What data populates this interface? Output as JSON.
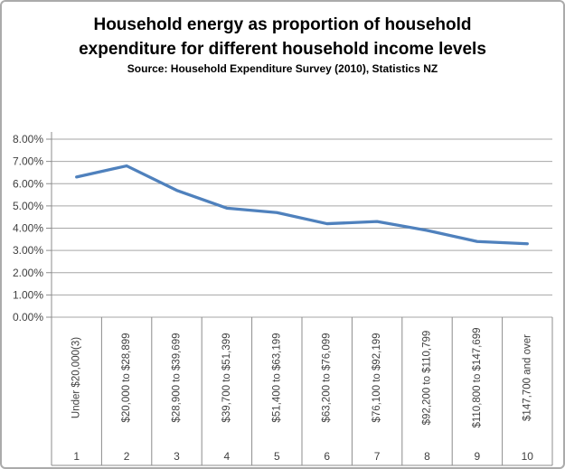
{
  "frame": {
    "title": "Household energy as proportion of household expenditure for different household income levels",
    "subtitle": "Source: Household Expenditure Survey (2010), Statistics NZ"
  },
  "chart_data": {
    "type": "line",
    "title": "Household energy as proportion of household expenditure for different household income levels",
    "source": "Source: Household Expenditure Survey (2010), Statistics NZ",
    "categories": [
      "Under $20,000(3)",
      "$20,000 to $28,899",
      "$28,900 to $39,699",
      "$39,700 to $51,399",
      "$51,400 to $63,199",
      "$63,200 to $76,099",
      "$76,100 to $92,199",
      "$92,200 to $110,799",
      "$110,800 to $147,699",
      "$147,700 and over"
    ],
    "category_group_numbers": [
      "1",
      "2",
      "3",
      "4",
      "5",
      "6",
      "7",
      "8",
      "9",
      "10"
    ],
    "values": [
      6.3,
      6.8,
      5.7,
      4.9,
      4.7,
      4.2,
      4.3,
      3.9,
      3.4,
      3.3
    ],
    "ylim": [
      0,
      8
    ],
    "ytick_step": 1,
    "ytick_labels": [
      "0.00%",
      "1.00%",
      "2.00%",
      "3.00%",
      "4.00%",
      "5.00%",
      "6.00%",
      "7.00%",
      "8.00%"
    ],
    "xlabel": "",
    "ylabel": "",
    "grid": "horizontal",
    "legend": "none",
    "line_color": "#4F81BD",
    "gridline_color": "#a6a6a6",
    "axis_color": "#8c8c8c",
    "text_color": "#3f3f3f"
  }
}
